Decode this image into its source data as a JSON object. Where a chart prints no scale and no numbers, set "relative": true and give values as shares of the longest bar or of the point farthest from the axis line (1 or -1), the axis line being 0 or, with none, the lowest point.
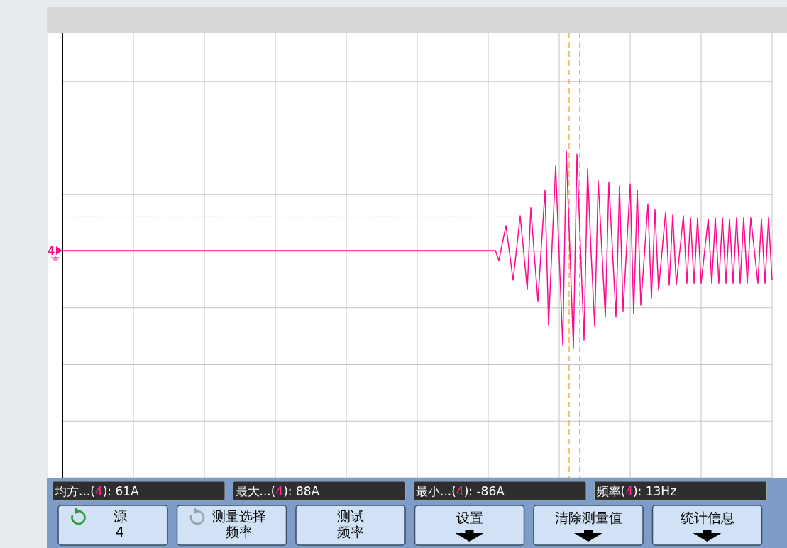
{
  "chart_data": {
    "type": "line",
    "relative": true,
    "categories": [
      null,
      null,
      null,
      null,
      null,
      null,
      null,
      null,
      null,
      null,
      null,
      null,
      null,
      null,
      null,
      null,
      null,
      null,
      null,
      null,
      null,
      null,
      null,
      null,
      null,
      null,
      null,
      null,
      null,
      null,
      null,
      null,
      null,
      null,
      null,
      null,
      null,
      null,
      null,
      null,
      null,
      null,
      null,
      null,
      null,
      null,
      null,
      null,
      null,
      null,
      null,
      null,
      null,
      null,
      null,
      null,
      null,
      null,
      null,
      null,
      null,
      null,
      null,
      null,
      null,
      null,
      null,
      null,
      null,
      null,
      null,
      null,
      null,
      null,
      null,
      null,
      null,
      null,
      null,
      null,
      null,
      null,
      null,
      null,
      null,
      null,
      null,
      null,
      null,
      null,
      null,
      null,
      null,
      null,
      null,
      null,
      null,
      null,
      null,
      null,
      null,
      null,
      null,
      null,
      null,
      null,
      null,
      null,
      null,
      null,
      null,
      null,
      null,
      null,
      null,
      null,
      null,
      null,
      null,
      null,
      null,
      null,
      null,
      null,
      null,
      null,
      null,
      null,
      null,
      null,
      null,
      null,
      null,
      null,
      null,
      null,
      null,
      null,
      null,
      null,
      null,
      null,
      null,
      null,
      null,
      null,
      null,
      null,
      null,
      null,
      null,
      null,
      null,
      null,
      null,
      null,
      null,
      null,
      null,
      null,
      null,
      null,
      null,
      null,
      null,
      null,
      null,
      null,
      null,
      null,
      null,
      null,
      null,
      null,
      null,
      null,
      null,
      null,
      null,
      null,
      null,
      null,
      null,
      null,
      null,
      null,
      null,
      null,
      null,
      null,
      null,
      null,
      null,
      null,
      null,
      null,
      null,
      null,
      null,
      null,
      null
    ],
    "series": [
      {
        "color": "#ff0a8c",
        "values": [
          0,
          0,
          0,
          0,
          0,
          0,
          0,
          0,
          0,
          0,
          0,
          0,
          0,
          0,
          0,
          0,
          0,
          0,
          0,
          0,
          0,
          0,
          0,
          0,
          0,
          0,
          0,
          0,
          0,
          0,
          0,
          0,
          0,
          0,
          0,
          0,
          0,
          0,
          0,
          0,
          0,
          0,
          0,
          0,
          0,
          0,
          0,
          0,
          0,
          0,
          0,
          0,
          0,
          0,
          0,
          0,
          0,
          0,
          0,
          0,
          0,
          0,
          0,
          0,
          0,
          0,
          0,
          0,
          0,
          0,
          0,
          0,
          0,
          0,
          0,
          0,
          0,
          0,
          0,
          0,
          0,
          0,
          0,
          0,
          0,
          0,
          0,
          0,
          0,
          0,
          0,
          0,
          0,
          0,
          0,
          0,
          0,
          0,
          0,
          0,
          0,
          0,
          0,
          0,
          0,
          0,
          0,
          0,
          0,
          0,
          0,
          0,
          0,
          0,
          0,
          0,
          0,
          0,
          0,
          0,
          0,
          0,
          0,
          -0.1,
          0.08,
          0.25,
          -0.02,
          -0.3,
          0.02,
          0.35,
          -0.02,
          -0.39,
          0.43,
          -0.05,
          -0.51,
          0.06,
          0.61,
          -0.75,
          0.06,
          0.85,
          -0.06,
          -0.95,
          1,
          0.01,
          -0.98,
          0.97,
          0.03,
          -0.9,
          0.82,
          -0.03,
          -0.76,
          0.7,
          0.02,
          -0.67,
          0.69,
          0.01,
          -0.67,
          0.65,
          -0.61,
          0.03,
          0.67,
          -0.64,
          0.61,
          -0.55,
          -0.05,
          0.47,
          -0.48,
          0.41,
          -0.4,
          0,
          0.39,
          -0.35,
          0.36,
          -0.34,
          0,
          0.35,
          -0.33,
          0.33,
          -0.33,
          0.33,
          -0.33,
          0,
          0.32,
          -0.33,
          0.33,
          -0.33,
          0.33,
          -0.33,
          0.32,
          -0.33,
          0.33,
          -0.33,
          0.33,
          -0.33,
          0.33,
          0,
          -0.33,
          0.32,
          -0.33,
          0.33,
          -0.3
        ]
      }
    ],
    "grid": true,
    "marker": "none",
    "line_style": "solid",
    "ref_lines": [
      {
        "axis": "y",
        "value": 0.34,
        "color": "#ff9a1a",
        "line_style": "dashed"
      }
    ],
    "annotations": [
      "均方...(4): 61A",
      "最大...(4): 88A",
      "最小...(4): -86A",
      "频率(4): 13Hz",
      "源4",
      "测量选择频率",
      "测试频率",
      "设置",
      "清除测量值",
      "统计信息",
      "4"
    ]
  }
}
